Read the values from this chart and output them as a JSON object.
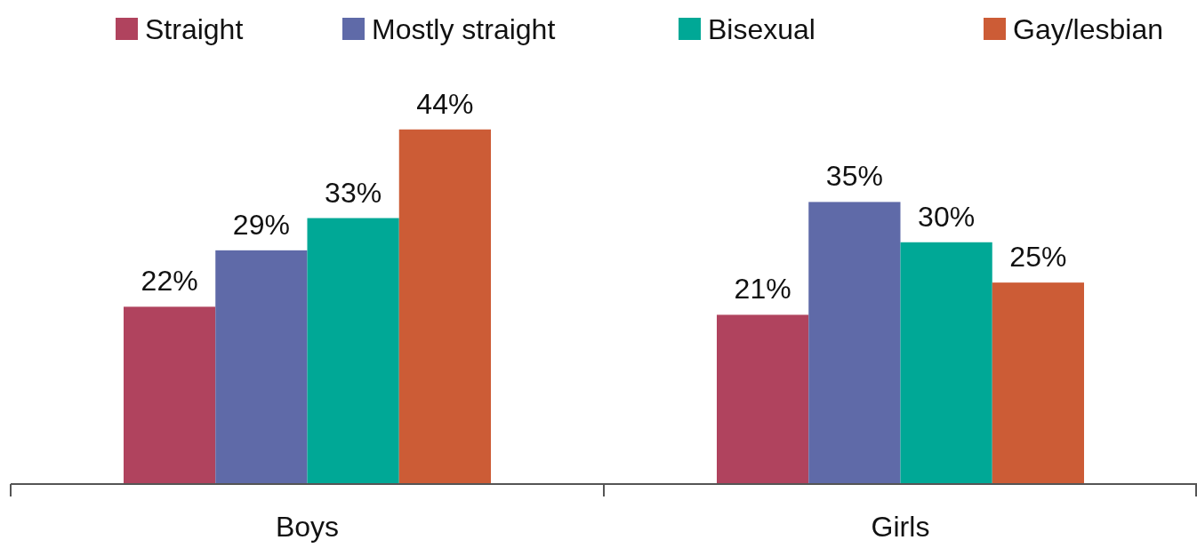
{
  "chart_data": {
    "type": "bar",
    "categories": [
      "Boys",
      "Girls"
    ],
    "series": [
      {
        "name": "Straight",
        "color": "#b0435e",
        "values": [
          22,
          21
        ],
        "value_labels": [
          "22%",
          "21%"
        ]
      },
      {
        "name": "Mostly straight",
        "color": "#5f6aa8",
        "values": [
          29,
          35
        ],
        "value_labels": [
          "29%",
          "35%"
        ]
      },
      {
        "name": "Bisexual",
        "color": "#00a896",
        "values": [
          33,
          30
        ],
        "value_labels": [
          "33%",
          "30%"
        ]
      },
      {
        "name": "Gay/lesbian",
        "color": "#cc5c36",
        "values": [
          44,
          25
        ],
        "value_labels": [
          "44%",
          "25%"
        ]
      }
    ],
    "legend": "top"
  }
}
